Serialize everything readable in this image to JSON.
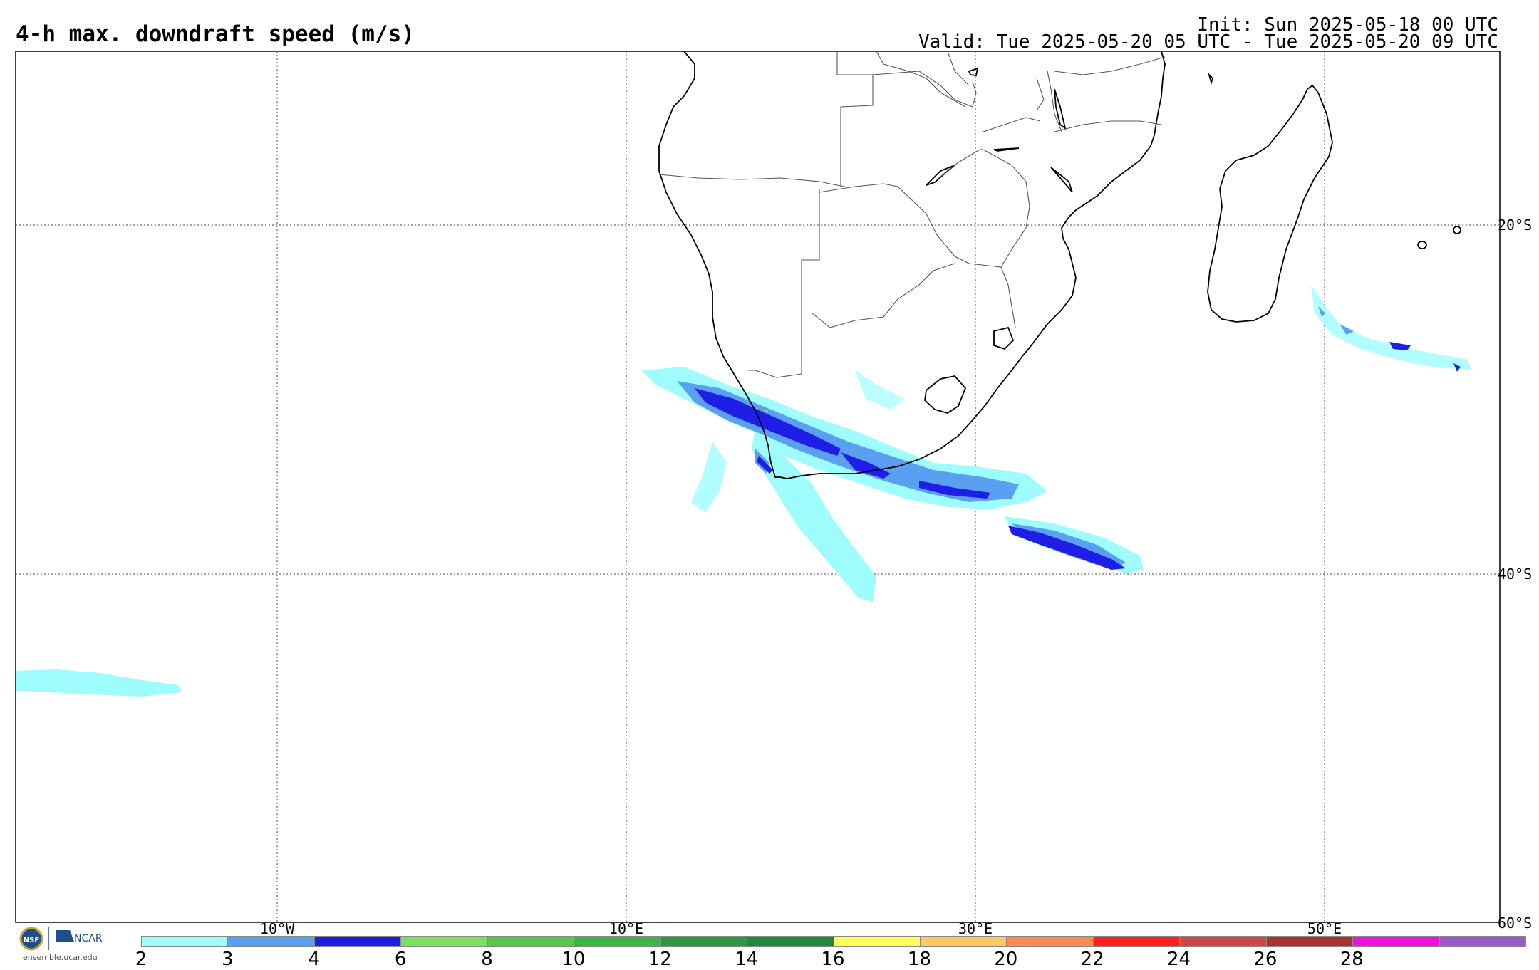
{
  "header": {
    "title": "4-h max. downdraft speed (m/s)",
    "init": "Init: Sun 2025-05-18 00 UTC",
    "valid": "Valid: Tue 2025-05-20 05 UTC - Tue 2025-05-20 09 UTC"
  },
  "axes": {
    "lon_labels": [
      "10°W",
      "10°E",
      "30°E",
      "50°E"
    ],
    "lat_labels": [
      "20°S",
      "40°S",
      "60°S"
    ]
  },
  "colorbar": {
    "tick_labels": [
      "2",
      "3",
      "4",
      "6",
      "8",
      "10",
      "12",
      "14",
      "16",
      "18",
      "20",
      "22",
      "24",
      "26",
      "28"
    ],
    "colors": [
      "#9ffcfc",
      "#5aa0f0",
      "#1e1ee6",
      "#7ee05a",
      "#56c84a",
      "#3cb446",
      "#2a9a42",
      "#1e8a3a",
      "#fefe5a",
      "#fec864",
      "#fe8c50",
      "#fe2020",
      "#d24646",
      "#a83232",
      "#f010e0",
      "#9a5ac8"
    ]
  },
  "logo": {
    "nsf": "NSF",
    "ncar": "NCAR",
    "site": "ensemble.ucar.edu"
  },
  "colors": {
    "light_cyan": "#9ffcfc",
    "mid_blue": "#5aa0f0",
    "dark_blue": "#1e1ee6",
    "coast": "#000000",
    "border": "#555555"
  }
}
